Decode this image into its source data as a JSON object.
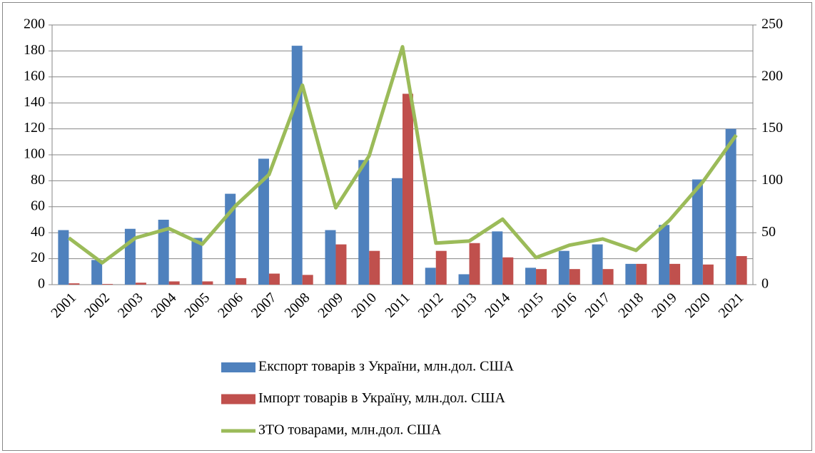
{
  "chart_data": {
    "type": "bar",
    "categories": [
      "2001",
      "2002",
      "2003",
      "2004",
      "2005",
      "2006",
      "2007",
      "2008",
      "2009",
      "2010",
      "2011",
      "2012",
      "2013",
      "2014",
      "2015",
      "2016",
      "2017",
      "2018",
      "2019",
      "2020",
      "2021"
    ],
    "series": [
      {
        "name": "Експорт товарів з України, млн.дол. США",
        "color": "#4f81bd",
        "type": "bar",
        "values": [
          42,
          19,
          43,
          50,
          36,
          70,
          97,
          184,
          42,
          96,
          82,
          13,
          8,
          41,
          13,
          26,
          31,
          16,
          46,
          81,
          120
        ]
      },
      {
        "name": "Імпорт товарів в Україну, млн.дол. США",
        "color": "#c0504d",
        "type": "bar",
        "values": [
          1,
          0.5,
          1.5,
          2.5,
          2.5,
          5,
          8.5,
          7.5,
          31,
          26,
          147,
          26,
          32,
          21,
          12,
          12,
          12,
          16,
          16,
          15.5,
          22
        ]
      },
      {
        "name": "ЗТО товарами, млн.дол. США",
        "color": "#9bbb59",
        "type": "line",
        "axis": "y2",
        "values": [
          45,
          21,
          45,
          54,
          39,
          76,
          106,
          192,
          74,
          124,
          229,
          40,
          42,
          63,
          26,
          38,
          44,
          33,
          62,
          99,
          144
        ]
      }
    ],
    "ylim": [
      0,
      200
    ],
    "yticks": [
      0,
      20,
      40,
      60,
      80,
      100,
      120,
      140,
      160,
      180,
      200
    ],
    "y2lim": [
      0,
      250
    ],
    "y2ticks": [
      0,
      50,
      100,
      150,
      200,
      250
    ],
    "grid": true,
    "legend": "bottom"
  }
}
